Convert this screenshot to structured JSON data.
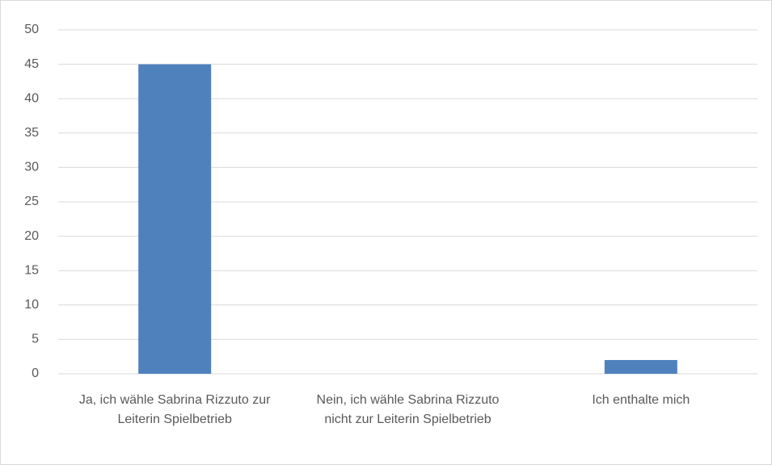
{
  "chart_data": {
    "type": "bar",
    "categories": [
      "Ja, ich wähle Sabrina Rizzuto zur Leiterin Spielbetrieb",
      "Nein, ich wähle Sabrina Rizzuto nicht zur Leiterin Spielbetrieb",
      "Ich enthalte mich"
    ],
    "values": [
      45,
      0,
      2
    ],
    "color": "#4f81bd",
    "ylim": [
      0,
      50
    ],
    "yticks": [
      0,
      5,
      10,
      15,
      20,
      25,
      30,
      35,
      40,
      45,
      50
    ],
    "grid": true
  }
}
